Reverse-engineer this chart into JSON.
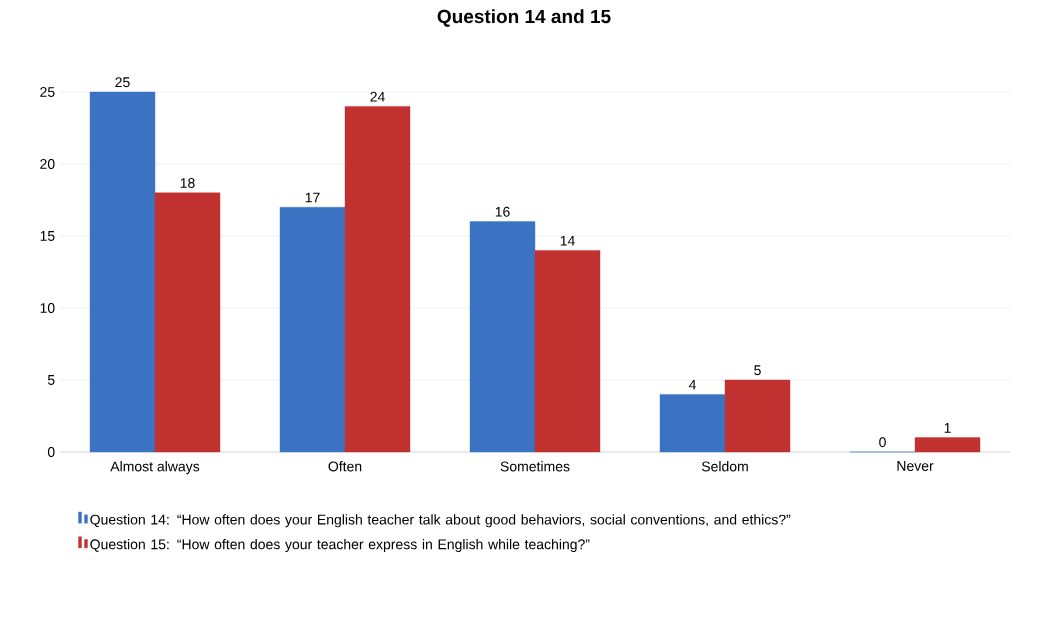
{
  "chart_data": {
    "type": "bar",
    "title": "Question 14 and 15",
    "categories": [
      "Almost always",
      "Often",
      "Sometimes",
      "Seldom",
      "Never"
    ],
    "series": [
      {
        "name": "Question 14: “How often does your English teacher talk about good behaviors, social conventions, and ethics?”",
        "color": "#3b73c2",
        "values": [
          25,
          17,
          16,
          4,
          0
        ]
      },
      {
        "name": "Question 15: “How often does your teacher express in English while teaching?”",
        "color": "#c0312f",
        "values": [
          18,
          24,
          14,
          5,
          1
        ]
      }
    ],
    "ylim": [
      0,
      25
    ],
    "yticks": [
      0,
      5,
      10,
      15,
      20,
      25
    ],
    "grid": "y",
    "legend": "bottom",
    "data_labels": true
  }
}
